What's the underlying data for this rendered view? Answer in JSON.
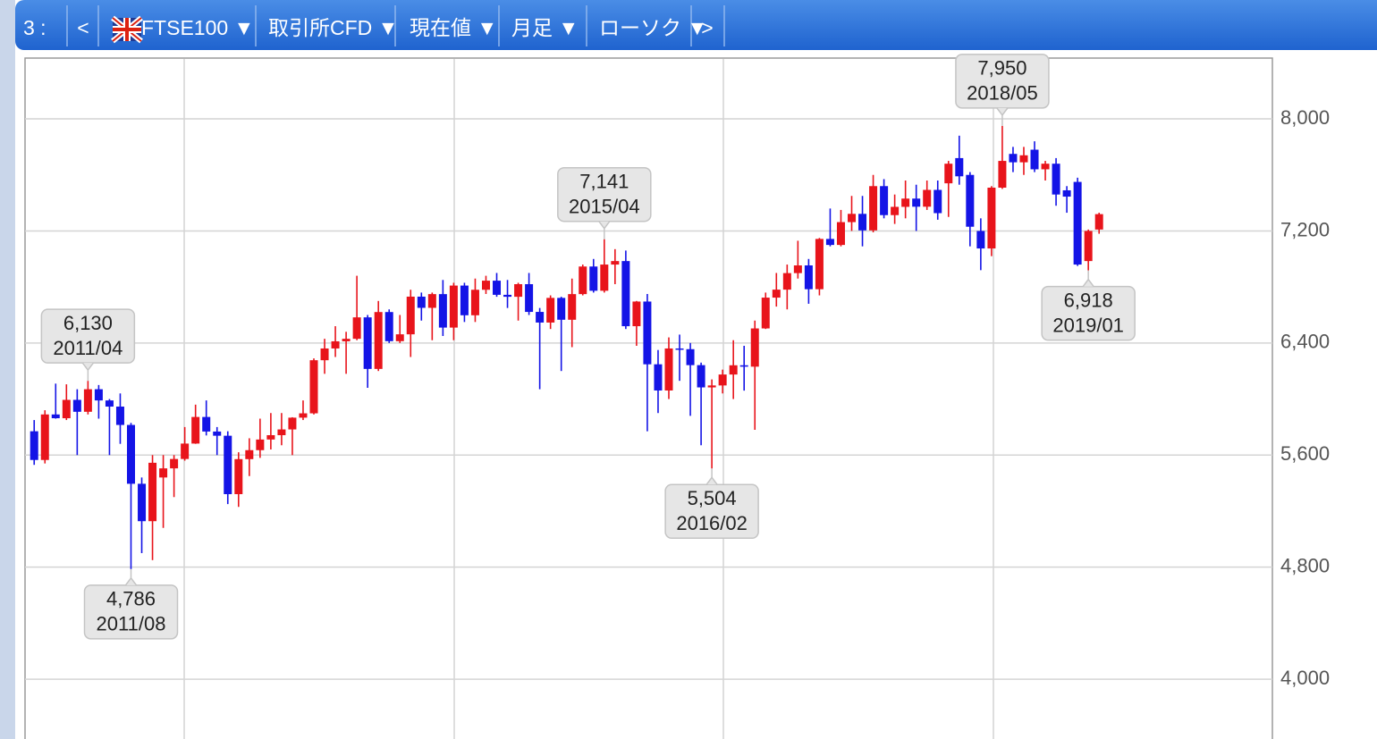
{
  "toolbar": {
    "items": [
      "3 :",
      "<",
      "FTSE100 ▼",
      "取引所CFD ▼",
      "現在値 ▼",
      "月足 ▼",
      "ローソク ▼",
      ">"
    ]
  },
  "chart_data": {
    "type": "candlestick",
    "up_color": "#e8141b",
    "down_color": "#1414e6",
    "ylim": [
      3573,
      8434
    ],
    "yticks": [
      {
        "value": 4000,
        "label": "4,000"
      },
      {
        "value": 4800,
        "label": "4,800"
      },
      {
        "value": 5600,
        "label": "5,600"
      },
      {
        "value": 6400,
        "label": "6,400"
      },
      {
        "value": 7200,
        "label": "7,200"
      },
      {
        "value": 8000,
        "label": "8,000"
      }
    ],
    "grid": true,
    "ohlc": [
      [
        5770,
        5850,
        5530,
        5565
      ],
      [
        5565,
        5920,
        5540,
        5890
      ],
      [
        5890,
        6110,
        5860,
        5863
      ],
      [
        5863,
        6105,
        5850,
        5994
      ],
      [
        5994,
        6070,
        5600,
        5909
      ],
      [
        5909,
        6130,
        5890,
        6070
      ],
      [
        6070,
        6100,
        5860,
        5990
      ],
      [
        5990,
        6000,
        5600,
        5946
      ],
      [
        5946,
        6040,
        5680,
        5815
      ],
      [
        5815,
        5830,
        4786,
        5395
      ],
      [
        5395,
        5440,
        4900,
        5128
      ],
      [
        5128,
        5600,
        4850,
        5545
      ],
      [
        5440,
        5600,
        5080,
        5505
      ],
      [
        5505,
        5600,
        5300,
        5572
      ],
      [
        5572,
        5800,
        5560,
        5682
      ],
      [
        5682,
        5960,
        5680,
        5872
      ],
      [
        5872,
        5990,
        5740,
        5768
      ],
      [
        5768,
        5800,
        5600,
        5738
      ],
      [
        5738,
        5770,
        5250,
        5321
      ],
      [
        5321,
        5620,
        5230,
        5571
      ],
      [
        5571,
        5720,
        5450,
        5635
      ],
      [
        5635,
        5860,
        5580,
        5711
      ],
      [
        5711,
        5900,
        5640,
        5742
      ],
      [
        5742,
        5900,
        5670,
        5783
      ],
      [
        5783,
        5870,
        5600,
        5867
      ],
      [
        5867,
        5990,
        5850,
        5898
      ],
      [
        5898,
        6290,
        5890,
        6277
      ],
      [
        6277,
        6430,
        6180,
        6361
      ],
      [
        6361,
        6520,
        6300,
        6412
      ],
      [
        6412,
        6480,
        6180,
        6430
      ],
      [
        6430,
        6880,
        6420,
        6583
      ],
      [
        6583,
        6600,
        6080,
        6215
      ],
      [
        6215,
        6700,
        6200,
        6621
      ],
      [
        6621,
        6640,
        6400,
        6413
      ],
      [
        6413,
        6600,
        6400,
        6462
      ],
      [
        6462,
        6780,
        6300,
        6731
      ],
      [
        6731,
        6760,
        6560,
        6651
      ],
      [
        6651,
        6760,
        6420,
        6749
      ],
      [
        6749,
        6850,
        6450,
        6510
      ],
      [
        6510,
        6830,
        6420,
        6810
      ],
      [
        6810,
        6830,
        6550,
        6598
      ],
      [
        6598,
        6860,
        6550,
        6780
      ],
      [
        6780,
        6880,
        6750,
        6845
      ],
      [
        6845,
        6900,
        6730,
        6744
      ],
      [
        6744,
        6850,
        6650,
        6730
      ],
      [
        6730,
        6830,
        6560,
        6820
      ],
      [
        6820,
        6900,
        6600,
        6622
      ],
      [
        6622,
        6650,
        6070,
        6546
      ],
      [
        6546,
        6740,
        6500,
        6722
      ],
      [
        6722,
        6730,
        6200,
        6566
      ],
      [
        6566,
        6860,
        6370,
        6749
      ],
      [
        6749,
        6960,
        6740,
        6946
      ],
      [
        6946,
        7000,
        6760,
        6773
      ],
      [
        6773,
        7141,
        6760,
        6960
      ],
      [
        6960,
        7070,
        6820,
        6985
      ],
      [
        6985,
        7060,
        6500,
        6520
      ],
      [
        6520,
        6700,
        6380,
        6696
      ],
      [
        6696,
        6750,
        5770,
        6248
      ],
      [
        6248,
        6350,
        5900,
        6061
      ],
      [
        6061,
        6440,
        6000,
        6361
      ],
      [
        6361,
        6460,
        6130,
        6356
      ],
      [
        6356,
        6400,
        5880,
        6242
      ],
      [
        6242,
        6260,
        5670,
        6083
      ],
      [
        6083,
        6140,
        5504,
        6097
      ],
      [
        6097,
        6210,
        6040,
        6175
      ],
      [
        6175,
        6420,
        6000,
        6241
      ],
      [
        6241,
        6380,
        6060,
        6231
      ],
      [
        6231,
        6560,
        5780,
        6504
      ],
      [
        6504,
        6760,
        6500,
        6724
      ],
      [
        6724,
        6900,
        6660,
        6781
      ],
      [
        6781,
        6960,
        6640,
        6899
      ],
      [
        6899,
        7130,
        6860,
        6954
      ],
      [
        6954,
        7000,
        6680,
        6784
      ],
      [
        6784,
        7150,
        6740,
        7143
      ],
      [
        7143,
        7360,
        7090,
        7100
      ],
      [
        7100,
        7350,
        7090,
        7263
      ],
      [
        7263,
        7450,
        7200,
        7322
      ],
      [
        7322,
        7450,
        7090,
        7204
      ],
      [
        7204,
        7600,
        7190,
        7520
      ],
      [
        7520,
        7570,
        7290,
        7313
      ],
      [
        7313,
        7460,
        7250,
        7372
      ],
      [
        7372,
        7560,
        7290,
        7431
      ],
      [
        7431,
        7530,
        7200,
        7373
      ],
      [
        7373,
        7560,
        7350,
        7493
      ],
      [
        7493,
        7560,
        7280,
        7327
      ],
      [
        7540,
        7700,
        7300,
        7680
      ],
      [
        7720,
        7880,
        7530,
        7590
      ],
      [
        7600,
        7620,
        7090,
        7230
      ],
      [
        7200,
        7290,
        6920,
        7075
      ],
      [
        7075,
        7520,
        7020,
        7509
      ],
      [
        7509,
        7950,
        7500,
        7700
      ],
      [
        7750,
        7800,
        7620,
        7690
      ],
      [
        7690,
        7800,
        7600,
        7740
      ],
      [
        7780,
        7840,
        7620,
        7640
      ],
      [
        7640,
        7700,
        7560,
        7680
      ],
      [
        7680,
        7720,
        7380,
        7460
      ],
      [
        7490,
        7520,
        7330,
        7445
      ],
      [
        7550,
        7580,
        6950,
        6960
      ],
      [
        6985,
        7210,
        6918,
        7200
      ],
      [
        7210,
        7330,
        7180,
        7320
      ]
    ],
    "annotations": [
      {
        "value": 6130,
        "label": "6,130",
        "date": "2011/04"
      },
      {
        "value": 4786,
        "label": "4,786",
        "date": "2011/08"
      },
      {
        "value": 7141,
        "label": "7,141",
        "date": "2015/04"
      },
      {
        "value": 5504,
        "label": "5,504",
        "date": "2016/02"
      },
      {
        "value": 7950,
        "label": "7,950",
        "date": "2018/05"
      },
      {
        "value": 6918,
        "label": "6,918",
        "date": "2019/01"
      }
    ]
  }
}
